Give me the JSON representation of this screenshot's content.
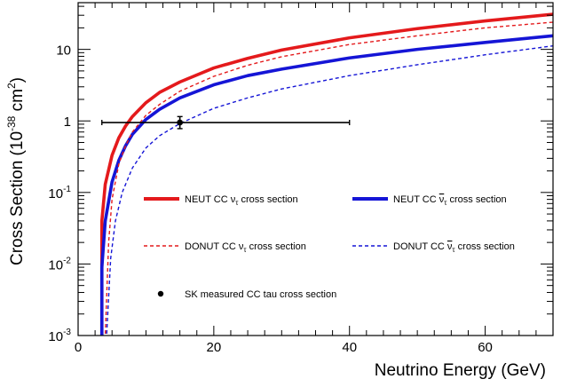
{
  "chart_data": {
    "type": "line",
    "xlabel": "Neutrino Energy (GeV)",
    "ylabel": "Cross Section (10",
    "ylabel_exponent": "-38",
    "ylabel_unit": " cm",
    "ylabel_unit_exponent": "2",
    "ylabel_close": ")",
    "xlim": [
      0,
      70
    ],
    "ylim": [
      0.001,
      45
    ],
    "yscale": "log",
    "grid": false,
    "x_ticks": [
      {
        "value": 0,
        "label": "0"
      },
      {
        "value": 20,
        "label": "20"
      },
      {
        "value": 40,
        "label": "40"
      },
      {
        "value": 60,
        "label": "60"
      }
    ],
    "y_ticks": [
      {
        "value": 0.001,
        "base": "10",
        "exp": "-3"
      },
      {
        "value": 0.01,
        "base": "10",
        "exp": "-2"
      },
      {
        "value": 0.1,
        "base": "10",
        "exp": "-1"
      },
      {
        "value": 1,
        "base": "1",
        "exp": ""
      },
      {
        "value": 10,
        "base": "10",
        "exp": ""
      }
    ],
    "series": [
      {
        "name": "NEUT CC ντ cross section",
        "legend_prefix": "NEUT CC ν",
        "legend_sub": "τ",
        "legend_suffix": " cross section",
        "color": "#e41a1c",
        "style": "solid",
        "x": [
          3.5,
          4,
          5,
          6,
          7,
          8,
          10,
          12,
          15,
          20,
          25,
          30,
          40,
          50,
          60,
          70
        ],
        "y": [
          0.04,
          0.13,
          0.33,
          0.58,
          0.85,
          1.15,
          1.8,
          2.5,
          3.5,
          5.5,
          7.5,
          9.8,
          14.5,
          19.5,
          25,
          31
        ]
      },
      {
        "name": "NEUT CC ν̄τ cross section",
        "legend_prefix": "NEUT CC ",
        "legend_nu": "ν",
        "legend_sub": "τ",
        "legend_suffix": " cross section",
        "bar": true,
        "color": "#1515d6",
        "style": "solid",
        "x": [
          3.5,
          4,
          5,
          6,
          7,
          8,
          10,
          12,
          15,
          20,
          25,
          30,
          40,
          50,
          60,
          70
        ],
        "y": [
          0.009,
          0.04,
          0.14,
          0.28,
          0.45,
          0.65,
          1.05,
          1.45,
          2.1,
          3.2,
          4.3,
          5.3,
          7.6,
          10.0,
          12.5,
          15.5
        ]
      },
      {
        "name": "DONUT CC ντ cross section",
        "legend_prefix": "DONUT CC ν",
        "legend_sub": "τ",
        "legend_suffix": " cross section",
        "color": "#e41a1c",
        "style": "dashed",
        "x": [
          4,
          4.5,
          5,
          6,
          7,
          8,
          10,
          12,
          15,
          20,
          25,
          30,
          40,
          50,
          60,
          70
        ],
        "y": [
          0.001,
          0.02,
          0.08,
          0.25,
          0.45,
          0.7,
          1.2,
          1.7,
          2.6,
          4.2,
          6.0,
          7.9,
          11.7,
          15.5,
          20,
          24
        ]
      },
      {
        "name": "DONUT CC ν̄τ cross section",
        "legend_prefix": "DONUT CC ",
        "legend_nu": "ν",
        "legend_sub": "τ",
        "legend_suffix": " cross section",
        "bar": true,
        "color": "#1515d6",
        "style": "dashed",
        "x": [
          4.2,
          4.8,
          5.5,
          6.5,
          8,
          10,
          12,
          15,
          20,
          25,
          30,
          40,
          50,
          60,
          70
        ],
        "y": [
          0.001,
          0.012,
          0.04,
          0.1,
          0.22,
          0.42,
          0.62,
          0.92,
          1.5,
          2.1,
          2.8,
          4.3,
          6.1,
          8.4,
          11.2
        ]
      }
    ],
    "measurement": {
      "name": "SK measured CC tau cross section",
      "x": 15,
      "y": 0.95,
      "x_err": [
        3.5,
        40
      ],
      "y_err": [
        0.78,
        1.15
      ],
      "color": "#000000"
    }
  }
}
